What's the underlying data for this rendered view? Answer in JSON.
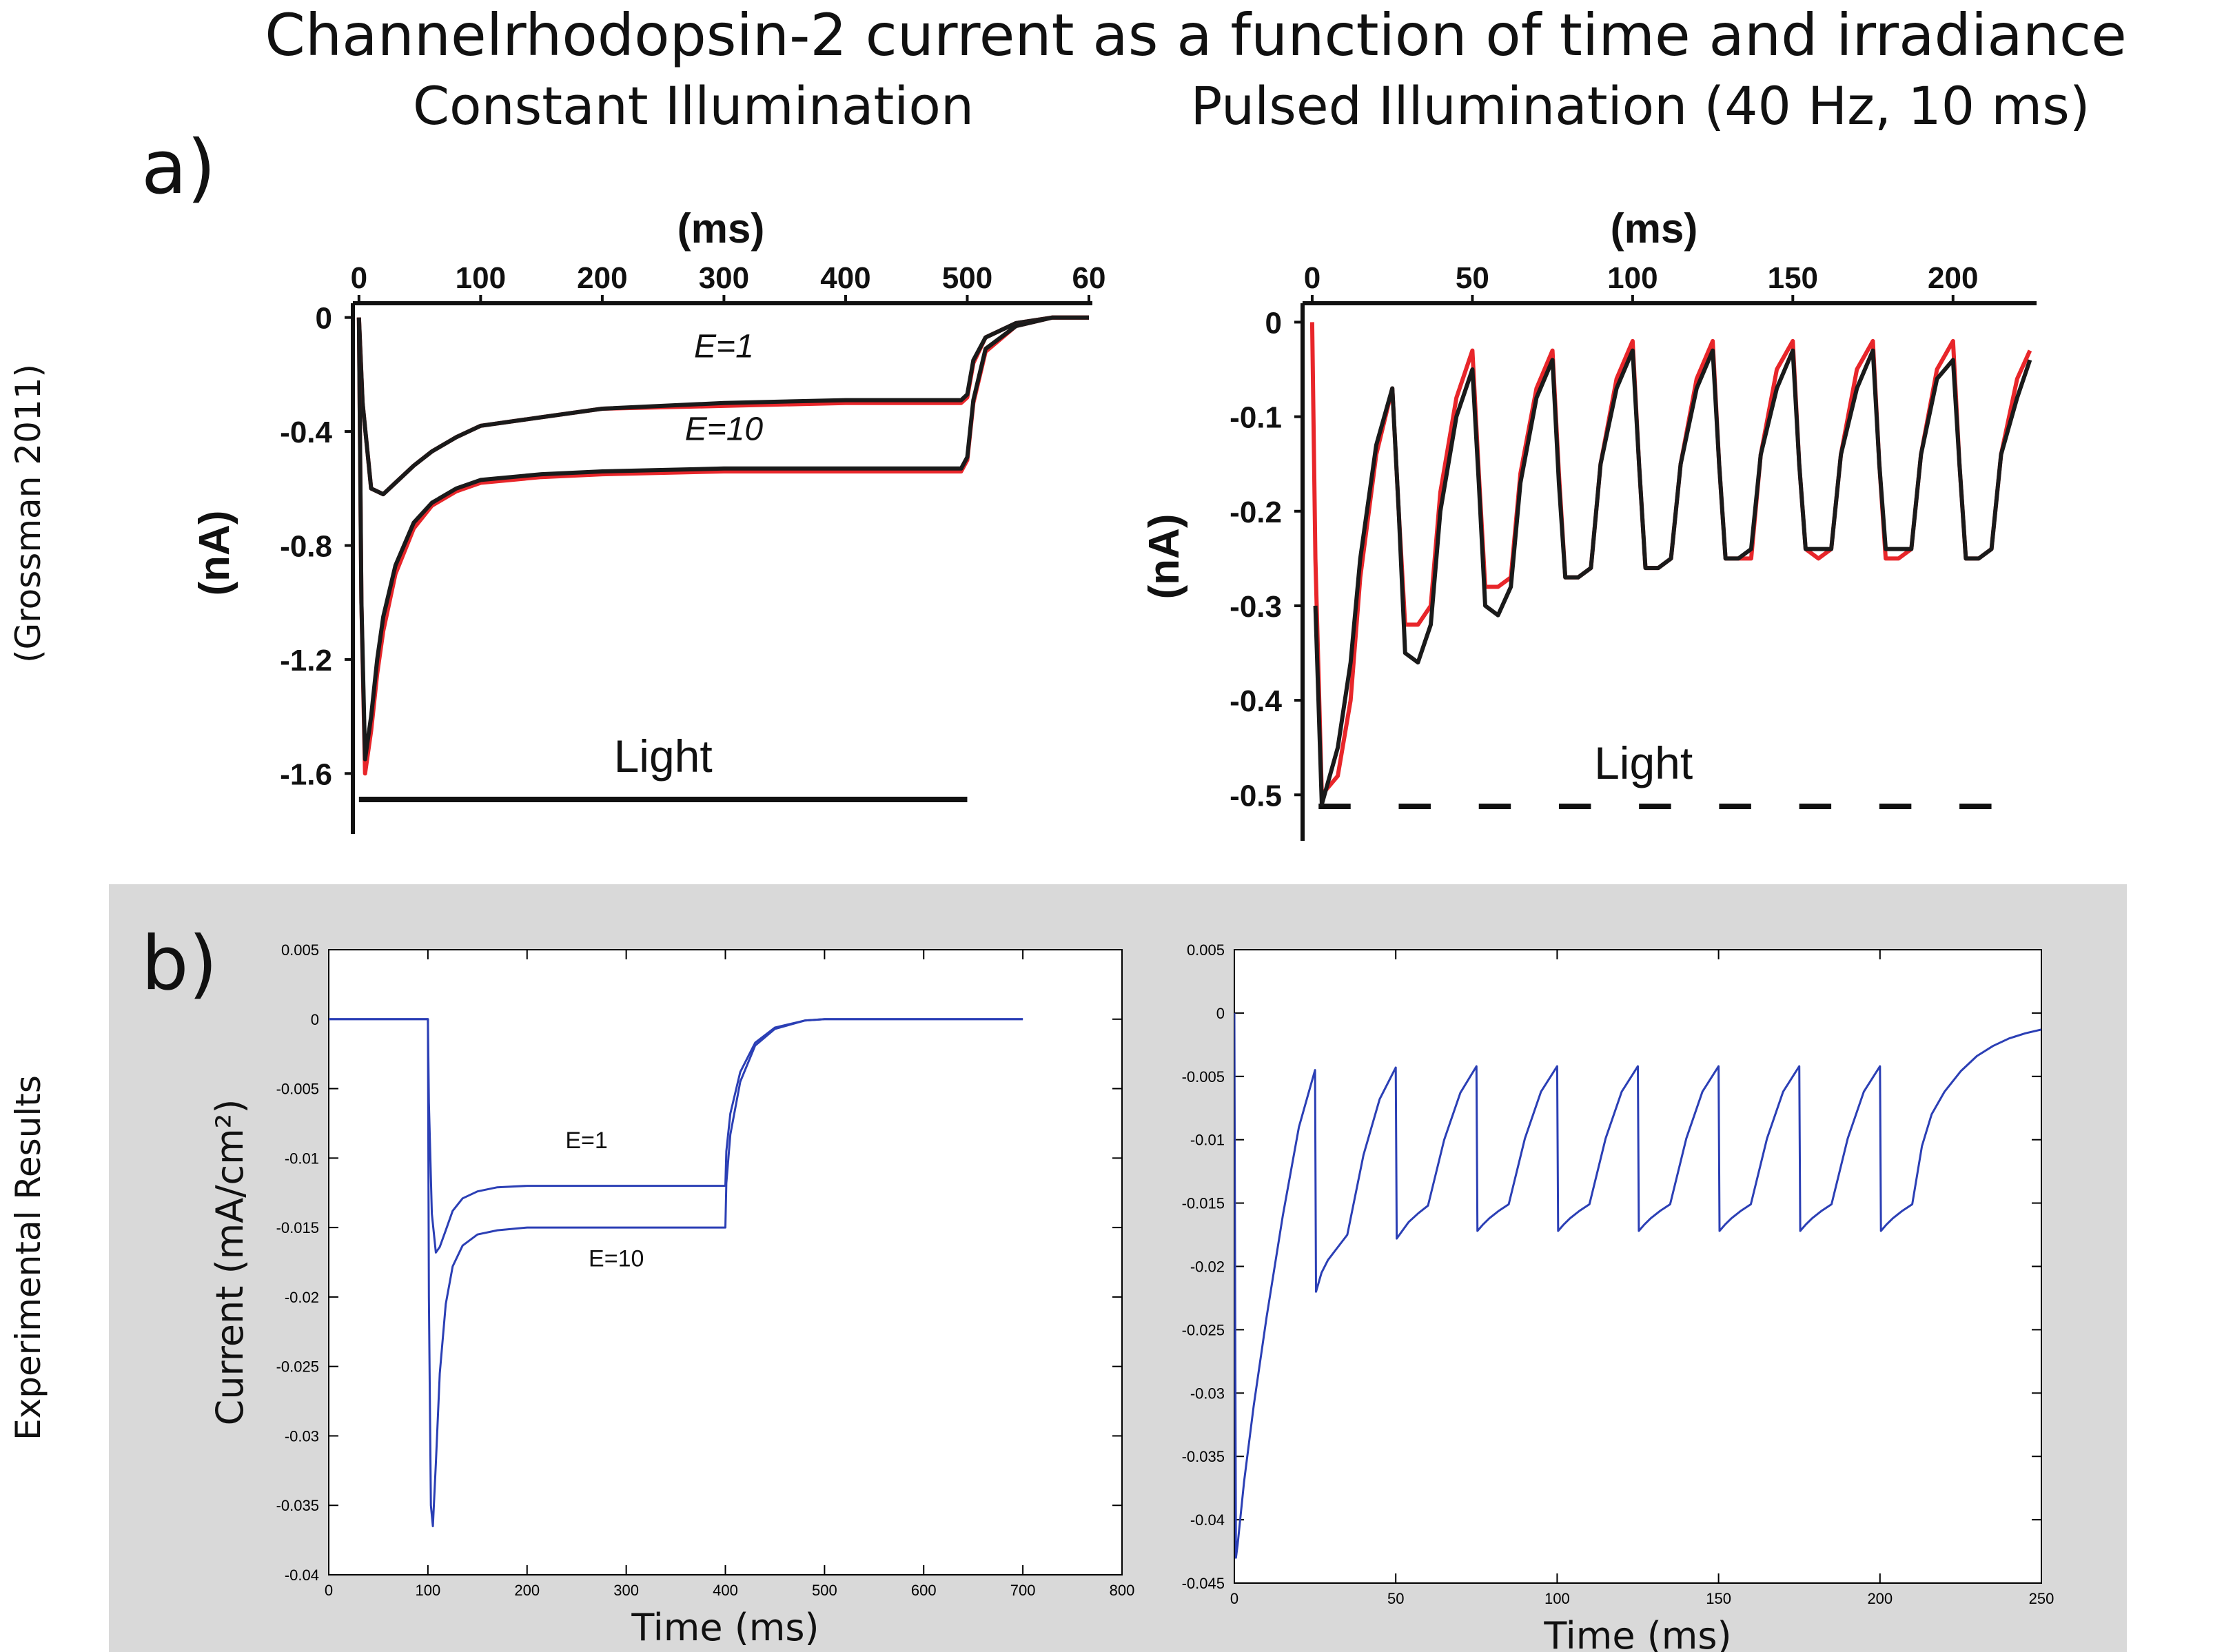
{
  "figure": {
    "title": "Channelrhodopsin-2 current as a function of time and irradiance",
    "row_a_label": "a)",
    "row_b_label": "b)",
    "row_a_side_label": "(Grossman 2011)",
    "row_b_side_label": "Experimental Results"
  },
  "colors": {
    "black_trace": "#1a1a1a",
    "red_trace": "#e8262a",
    "blue_trace": "#2b3fb5",
    "panel_b_bg": "#d9d9d9"
  },
  "chart_data": [
    {
      "id": "a_constant",
      "type": "line",
      "title": "Constant Illumination",
      "xlabel": "(ms)",
      "ylabel": "(nA)",
      "xticks": [
        "0",
        "100",
        "200",
        "300",
        "400",
        "500",
        "60"
      ],
      "yticks": [
        "0",
        "-0.4",
        "-0.8",
        "-1.2",
        "-1.6"
      ],
      "xlim": [
        -5,
        600
      ],
      "ylim": [
        -1.8,
        0.05
      ],
      "annotations": [
        "E=1",
        "E=10"
      ],
      "bar_label": "Light",
      "light": {
        "type": "solid",
        "start": 0,
        "end": 500
      },
      "series": [
        {
          "style": "red",
          "x": [
            0,
            3,
            10,
            20,
            30,
            45,
            60,
            80,
            100,
            150,
            200,
            300,
            400,
            495,
            500,
            505,
            515,
            540,
            570,
            600
          ],
          "y": [
            0,
            -0.3,
            -0.6,
            -0.62,
            -0.58,
            -0.52,
            -0.47,
            -0.42,
            -0.38,
            -0.35,
            -0.32,
            -0.31,
            -0.3,
            -0.3,
            -0.28,
            -0.16,
            -0.07,
            -0.02,
            0,
            0
          ]
        },
        {
          "style": "black",
          "x": [
            0,
            3,
            10,
            20,
            30,
            45,
            60,
            80,
            100,
            150,
            200,
            300,
            400,
            495,
            500,
            505,
            515,
            540,
            570,
            600
          ],
          "y": [
            0,
            -0.3,
            -0.6,
            -0.62,
            -0.58,
            -0.52,
            -0.47,
            -0.42,
            -0.38,
            -0.35,
            -0.32,
            -0.3,
            -0.29,
            -0.29,
            -0.27,
            -0.15,
            -0.07,
            -0.02,
            0,
            0
          ]
        },
        {
          "style": "red",
          "x": [
            0,
            2,
            5,
            10,
            15,
            20,
            30,
            45,
            60,
            80,
            100,
            150,
            200,
            300,
            400,
            495,
            500,
            505,
            515,
            540,
            570,
            600
          ],
          "y": [
            0,
            -1.0,
            -1.6,
            -1.45,
            -1.25,
            -1.1,
            -0.9,
            -0.74,
            -0.66,
            -0.61,
            -0.58,
            -0.56,
            -0.55,
            -0.54,
            -0.54,
            -0.54,
            -0.5,
            -0.3,
            -0.12,
            -0.03,
            0,
            0
          ]
        },
        {
          "style": "black",
          "x": [
            0,
            2,
            5,
            10,
            15,
            20,
            30,
            45,
            60,
            80,
            100,
            150,
            200,
            300,
            400,
            495,
            500,
            505,
            515,
            540,
            570,
            600
          ],
          "y": [
            0,
            -1.0,
            -1.55,
            -1.4,
            -1.2,
            -1.05,
            -0.87,
            -0.72,
            -0.65,
            -0.6,
            -0.57,
            -0.55,
            -0.54,
            -0.53,
            -0.53,
            -0.53,
            -0.49,
            -0.29,
            -0.11,
            -0.03,
            0,
            0
          ]
        }
      ]
    },
    {
      "id": "a_pulsed",
      "type": "line",
      "title": "Pulsed Illumination (40 Hz, 10 ms)",
      "xlabel": "(ms)",
      "ylabel": "(nA)",
      "xticks": [
        "0",
        "50",
        "100",
        "150",
        "200"
      ],
      "yticks": [
        "0",
        "-0.1",
        "-0.2",
        "-0.3",
        "-0.4",
        "-0.5"
      ],
      "xlim": [
        -3,
        225
      ],
      "ylim": [
        -0.545,
        0.02
      ],
      "bar_label": "Light",
      "light": {
        "type": "dashed",
        "pulses": [
          [
            2,
            12
          ],
          [
            27,
            37
          ],
          [
            52,
            62
          ],
          [
            77,
            87
          ],
          [
            102,
            112
          ],
          [
            127,
            137
          ],
          [
            152,
            162
          ],
          [
            177,
            187
          ],
          [
            202,
            212
          ]
        ]
      },
      "series": [
        {
          "style": "red",
          "x": [
            0,
            1,
            3,
            8,
            12,
            15,
            20,
            25,
            27,
            29,
            33,
            37,
            40,
            45,
            50,
            52,
            54,
            58,
            62,
            65,
            70,
            75,
            77,
            79,
            83,
            87,
            90,
            95,
            100,
            102,
            104,
            108,
            112,
            115,
            120,
            125,
            127,
            129,
            133,
            137,
            140,
            145,
            150,
            152,
            154,
            158,
            162,
            165,
            170,
            175,
            177,
            179,
            183,
            187,
            190,
            195,
            200,
            202,
            204,
            208,
            212,
            215,
            220,
            224
          ],
          "y": [
            0,
            -0.25,
            -0.5,
            -0.48,
            -0.4,
            -0.27,
            -0.14,
            -0.07,
            -0.2,
            -0.32,
            -0.32,
            -0.3,
            -0.18,
            -0.08,
            -0.03,
            -0.16,
            -0.28,
            -0.28,
            -0.27,
            -0.16,
            -0.07,
            -0.03,
            -0.16,
            -0.27,
            -0.27,
            -0.26,
            -0.15,
            -0.06,
            -0.02,
            -0.15,
            -0.26,
            -0.26,
            -0.25,
            -0.15,
            -0.06,
            -0.02,
            -0.15,
            -0.25,
            -0.25,
            -0.25,
            -0.14,
            -0.05,
            -0.02,
            -0.15,
            -0.24,
            -0.25,
            -0.24,
            -0.14,
            -0.05,
            -0.02,
            -0.15,
            -0.25,
            -0.25,
            -0.24,
            -0.14,
            -0.05,
            -0.02,
            -0.15,
            -0.25,
            -0.25,
            -0.24,
            -0.14,
            -0.06,
            -0.03
          ]
        },
        {
          "style": "black",
          "x": [
            1,
            3,
            8,
            12,
            15,
            20,
            25,
            27,
            29,
            33,
            37,
            40,
            45,
            50,
            52,
            54,
            58,
            62,
            65,
            70,
            75,
            77,
            79,
            83,
            87,
            90,
            95,
            100,
            102,
            104,
            108,
            112,
            115,
            120,
            125,
            127,
            129,
            133,
            137,
            140,
            145,
            150,
            152,
            154,
            158,
            162,
            165,
            170,
            175,
            177,
            179,
            183,
            187,
            190,
            195,
            200,
            202,
            204,
            208,
            212,
            215,
            220,
            224
          ],
          "y": [
            -0.3,
            -0.51,
            -0.45,
            -0.36,
            -0.25,
            -0.13,
            -0.07,
            -0.2,
            -0.35,
            -0.36,
            -0.32,
            -0.2,
            -0.1,
            -0.05,
            -0.17,
            -0.3,
            -0.31,
            -0.28,
            -0.17,
            -0.08,
            -0.04,
            -0.17,
            -0.27,
            -0.27,
            -0.26,
            -0.15,
            -0.07,
            -0.03,
            -0.15,
            -0.26,
            -0.26,
            -0.25,
            -0.15,
            -0.07,
            -0.03,
            -0.15,
            -0.25,
            -0.25,
            -0.24,
            -0.14,
            -0.07,
            -0.03,
            -0.15,
            -0.24,
            -0.24,
            -0.24,
            -0.14,
            -0.07,
            -0.03,
            -0.15,
            -0.24,
            -0.24,
            -0.24,
            -0.14,
            -0.06,
            -0.04,
            -0.15,
            -0.25,
            -0.25,
            -0.24,
            -0.14,
            -0.08,
            -0.04
          ]
        }
      ]
    },
    {
      "id": "b_constant",
      "type": "line",
      "xlabel": "Time (ms)",
      "ylabel": "Current (mA/cm²)",
      "xlim": [
        0,
        800
      ],
      "ylim": [
        -0.04,
        0.005
      ],
      "xticks": [
        "0",
        "100",
        "200",
        "300",
        "400",
        "500",
        "600",
        "700",
        "800"
      ],
      "yticks": [
        "0.005",
        "0",
        "-0.005",
        "-0.01",
        "-0.015",
        "-0.02",
        "-0.025",
        "-0.03",
        "-0.035",
        "-0.04"
      ],
      "annotations": [
        "E=1",
        "E=10"
      ],
      "series": [
        {
          "style": "blue",
          "x": [
            0,
            100,
            101,
            104,
            108,
            112,
            118,
            125,
            135,
            150,
            170,
            200,
            300,
            400,
            401,
            405,
            415,
            430,
            450,
            480,
            500,
            550,
            700
          ],
          "y": [
            0,
            0,
            -0.006,
            -0.014,
            -0.0168,
            -0.0164,
            -0.0152,
            -0.0138,
            -0.0129,
            -0.0124,
            -0.0121,
            -0.012,
            -0.012,
            -0.012,
            -0.0095,
            -0.0068,
            -0.0038,
            -0.0017,
            -0.0006,
            -0.0001,
            0,
            0,
            0
          ]
        },
        {
          "style": "blue",
          "x": [
            0,
            100,
            101,
            103,
            105,
            108,
            112,
            118,
            125,
            135,
            150,
            170,
            200,
            300,
            400,
            401,
            405,
            415,
            430,
            450,
            480,
            500,
            550,
            700
          ],
          "y": [
            0,
            0,
            -0.02,
            -0.035,
            -0.0365,
            -0.032,
            -0.0255,
            -0.0205,
            -0.0178,
            -0.0163,
            -0.0155,
            -0.0152,
            -0.015,
            -0.015,
            -0.015,
            -0.0118,
            -0.0083,
            -0.0045,
            -0.0019,
            -0.0007,
            -0.0001,
            0,
            0,
            0
          ]
        }
      ]
    },
    {
      "id": "b_pulsed",
      "type": "line",
      "xlabel": "Time (ms)",
      "xlim": [
        0,
        250
      ],
      "ylim": [
        -0.045,
        0.005
      ],
      "xticks": [
        "0",
        "50",
        "100",
        "150",
        "200",
        "250"
      ],
      "yticks": [
        "0.005",
        "0",
        "-0.005",
        "-0.01",
        "-0.015",
        "-0.02",
        "-0.025",
        "-0.03",
        "-0.035",
        "-0.04",
        "-0.045"
      ],
      "series": [
        {
          "style": "blue",
          "x": [
            0,
            0.5,
            1,
            3,
            6,
            10,
            15,
            20,
            25,
            25.3,
            27,
            29,
            32,
            35,
            40,
            45,
            50,
            50.3,
            52,
            54,
            57,
            60,
            65,
            70,
            75,
            75.3,
            77,
            79,
            82,
            85,
            90,
            95,
            100,
            100.3,
            102,
            104,
            107,
            110,
            115,
            120,
            125,
            125.3,
            127,
            129,
            132,
            135,
            140,
            145,
            150,
            150.3,
            152,
            154,
            157,
            160,
            165,
            170,
            175,
            175.3,
            177,
            179,
            182,
            185,
            190,
            195,
            200,
            200.3,
            202,
            204,
            207,
            210,
            213,
            216,
            220,
            225,
            230,
            235,
            240,
            245,
            250
          ],
          "y": [
            0,
            -0.043,
            -0.042,
            -0.037,
            -0.031,
            -0.024,
            -0.016,
            -0.009,
            -0.0045,
            -0.022,
            -0.0205,
            -0.0195,
            -0.0185,
            -0.0175,
            -0.0112,
            -0.0068,
            -0.0043,
            -0.0178,
            -0.0172,
            -0.0165,
            -0.0158,
            -0.0152,
            -0.01,
            -0.0063,
            -0.0042,
            -0.0172,
            -0.0167,
            -0.0162,
            -0.0156,
            -0.0151,
            -0.0099,
            -0.0062,
            -0.0042,
            -0.0172,
            -0.0167,
            -0.0162,
            -0.0156,
            -0.0151,
            -0.0099,
            -0.0062,
            -0.0042,
            -0.0172,
            -0.0167,
            -0.0162,
            -0.0156,
            -0.0151,
            -0.0099,
            -0.0062,
            -0.0042,
            -0.0172,
            -0.0167,
            -0.0162,
            -0.0156,
            -0.0151,
            -0.0099,
            -0.0062,
            -0.0042,
            -0.0172,
            -0.0167,
            -0.0162,
            -0.0156,
            -0.0151,
            -0.0099,
            -0.0062,
            -0.0042,
            -0.0172,
            -0.0167,
            -0.0162,
            -0.0156,
            -0.0151,
            -0.0105,
            -0.008,
            -0.0062,
            -0.0046,
            -0.0034,
            -0.0026,
            -0.002,
            -0.0016,
            -0.0013
          ]
        }
      ]
    }
  ]
}
